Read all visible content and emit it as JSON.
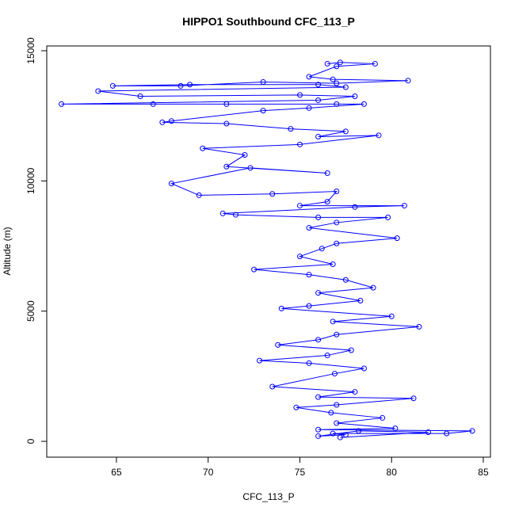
{
  "chart_data": {
    "type": "line",
    "title": "HIPPO1 Southbound CFC_113_P",
    "x_label": "CFC_113_P",
    "y_label": "Altitude (m)",
    "color": "#0000ff",
    "x": [
      76.5,
      77.2,
      79.1,
      77,
      75.5,
      76.8,
      80.9,
      77,
      73,
      68.5,
      64.8,
      69,
      76,
      77.5,
      64,
      66.3,
      75,
      78,
      76,
      62,
      67,
      71,
      77,
      78.5,
      75.5,
      73,
      68,
      67.5,
      71,
      74.5,
      77.5,
      76,
      79.3,
      75,
      69.7,
      72,
      71,
      76.5,
      72.3,
      68,
      69.5,
      73.5,
      77,
      76.5,
      75,
      80.7,
      78,
      70.8,
      71.5,
      76,
      79.8,
      77,
      75.5,
      80.3,
      77,
      76.2,
      75,
      76.8,
      72.5,
      75.5,
      77.5,
      79,
      76,
      78.3,
      75.5,
      74,
      80,
      76.8,
      81.5,
      77,
      76,
      73.8,
      77.8,
      76.5,
      72.8,
      75.5,
      78.5,
      76.9,
      73.5,
      78,
      76,
      81.2,
      77,
      74.8,
      76.7,
      79.5,
      77,
      80.2,
      76,
      84.4,
      83,
      76.8,
      77.5,
      76,
      78.2,
      82,
      77.2
    ],
    "y": [
      14500,
      14550,
      14500,
      14400,
      14000,
      13900,
      13850,
      13750,
      13800,
      13650,
      13650,
      13700,
      13700,
      13600,
      13450,
      13250,
      13300,
      13250,
      13100,
      12950,
      12950,
      12950,
      12950,
      12950,
      12800,
      12700,
      12300,
      12250,
      12200,
      12000,
      11900,
      11700,
      11750,
      11400,
      11250,
      11000,
      10550,
      10300,
      10500,
      9900,
      9450,
      9500,
      9600,
      9200,
      9050,
      9050,
      9000,
      8750,
      8700,
      8600,
      8600,
      8400,
      8200,
      7800,
      7600,
      7400,
      7100,
      6800,
      6600,
      6400,
      6200,
      5900,
      5700,
      5400,
      5200,
      5100,
      4800,
      4600,
      4400,
      4100,
      3900,
      3700,
      3500,
      3300,
      3100,
      3000,
      2800,
      2600,
      2100,
      1900,
      1700,
      1650,
      1400,
      1300,
      1100,
      900,
      700,
      500,
      450,
      400,
      300,
      300,
      250,
      200,
      400,
      350,
      150
    ],
    "xlim": [
      61.2,
      85.39
    ],
    "ylim": [
      -608,
      15183
    ],
    "xticks": [
      65,
      70,
      75,
      80,
      85
    ],
    "yticks": [
      0,
      5000,
      10000,
      15000
    ]
  }
}
